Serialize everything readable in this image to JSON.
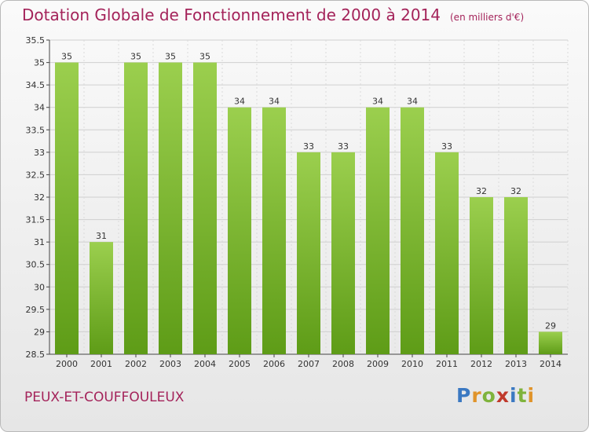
{
  "header": {
    "title": "Dotation Globale de Fonctionnement de 2000 à 2014",
    "subtitle": "(en milliers d'€)"
  },
  "footer": {
    "commune": "PEUX-ET-COUFFOULEUX",
    "logo": {
      "letters": [
        "P",
        "r",
        "o",
        "x",
        "i",
        "t",
        "i"
      ],
      "colors": [
        "#3b79c2",
        "#e0942b",
        "#7fb33c",
        "#c0392b",
        "#3b79c2",
        "#7fb33c",
        "#e0942b"
      ]
    }
  },
  "chart_data": {
    "type": "bar",
    "categories": [
      "2000",
      "2001",
      "2002",
      "2003",
      "2004",
      "2005",
      "2006",
      "2007",
      "2008",
      "2009",
      "2010",
      "2011",
      "2012",
      "2013",
      "2014"
    ],
    "values": [
      35,
      31,
      35,
      35,
      35,
      34,
      34,
      33,
      33,
      34,
      34,
      33,
      32,
      32,
      29
    ],
    "value_labels": [
      "35",
      "31",
      "35",
      "35",
      "35",
      "34",
      "34",
      "33",
      "33",
      "34",
      "34",
      "33",
      "32",
      "32",
      "29"
    ],
    "ylim": [
      28.5,
      35.5
    ],
    "yticks": [
      "28.5",
      "29",
      "29.5",
      "30",
      "30.5",
      "31",
      "31.5",
      "32",
      "32.5",
      "33",
      "33.5",
      "34",
      "34.5",
      "35",
      "35.5"
    ],
    "grid": true,
    "bar_color_top": "#9bcf4e",
    "bar_color_bottom": "#5e9c17"
  }
}
